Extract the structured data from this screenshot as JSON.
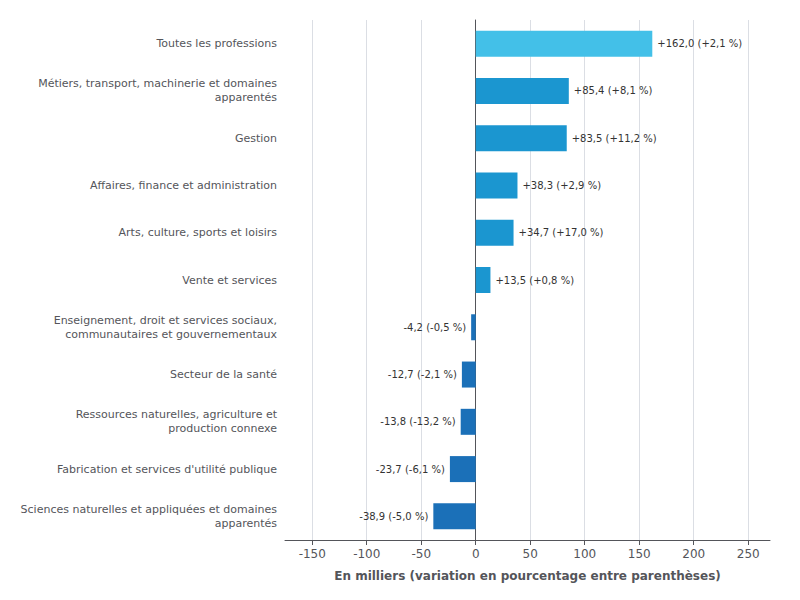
{
  "chart_data": {
    "type": "bar",
    "orientation": "horizontal",
    "categories": [
      "Toutes les professions",
      "Métiers, transport, machinerie et domaines\napparentés",
      "Gestion",
      "Affaires, finance et administration",
      "Arts, culture, sports et loisirs",
      "Vente et services",
      "Enseignement, droit et services sociaux,\ncommunautaires et gouvernementaux",
      "Secteur de la santé",
      "Ressources naturelles, agriculture et\nproduction connexe",
      "Fabrication et services d'utilité publique",
      "Sciences naturelles et appliquées et domaines\napparentés"
    ],
    "values": [
      162.0,
      85.4,
      83.5,
      38.3,
      34.7,
      13.5,
      -4.2,
      -12.7,
      -13.8,
      -23.7,
      -38.9
    ],
    "value_labels": [
      "+162,0 (+2,1 %)",
      "+85,4 (+8,1 %)",
      "+83,5 (+11,2 %)",
      "+38,3 (+2,9 %)",
      "+34,7 (+17,0 %)",
      "+13,5 (+0,8 %)",
      "-4,2 (-0,5 %)",
      "-12,7 (-2,1 %)",
      "-13,8 (-13,2 %)",
      "-23,7 (-6,1 %)",
      "-38,9 (-5,0 %)"
    ],
    "data_labels": true,
    "colors": [
      "#43C0E8",
      "#1B96D0",
      "#1B96D0",
      "#1B96D0",
      "#1B96D0",
      "#1B96D0",
      "#1B70B8",
      "#1B70B8",
      "#1B70B8",
      "#1B70B8",
      "#1B70B8"
    ],
    "xlabel": "En milliers (variation en pourcentage entre parenthèses)",
    "xlim": [
      -175,
      270
    ],
    "xticks": [
      -150,
      -100,
      -50,
      0,
      50,
      100,
      150,
      200,
      250
    ],
    "grid": true
  }
}
